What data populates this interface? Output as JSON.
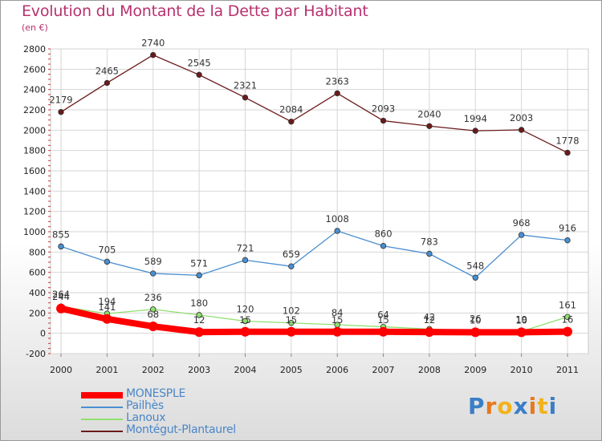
{
  "chart_data": {
    "type": "line",
    "title": "Evolution du Montant de la Dette par Habitant",
    "subtitle": "(en €)",
    "x": [
      "2000",
      "2001",
      "2002",
      "2003",
      "2004",
      "2005",
      "2006",
      "2007",
      "2008",
      "2009",
      "2010",
      "2011"
    ],
    "ylim": [
      -200,
      2800
    ],
    "yticks": [
      "-200",
      "0",
      "200",
      "400",
      "600",
      "800",
      "1000",
      "1200",
      "1400",
      "1600",
      "1800",
      "2000",
      "2200",
      "2400",
      "2600",
      "2800"
    ],
    "grid": true,
    "legend_position": "bottom-left",
    "series": [
      {
        "name": "MONESPLE",
        "color": "#ff0000",
        "values": [
          244,
          141,
          68,
          12,
          15,
          15,
          15,
          15,
          12,
          10,
          10,
          16
        ],
        "labels": [
          "244",
          "141",
          "68",
          "12",
          "15",
          "15",
          "15",
          "15",
          "12",
          "10",
          "10",
          "16"
        ]
      },
      {
        "name": "Pailhès",
        "color": "#4a8fd0",
        "values": [
          855,
          705,
          589,
          571,
          721,
          659,
          1008,
          860,
          783,
          548,
          968,
          916
        ],
        "labels": [
          "855",
          "705",
          "589",
          "571",
          "721",
          "659",
          "1008",
          "860",
          "783",
          "548",
          "968",
          "916"
        ]
      },
      {
        "name": "Lanoux",
        "color": "#90e070",
        "values": [
          264,
          194,
          236,
          180,
          120,
          102,
          84,
          64,
          42,
          26,
          19,
          161
        ],
        "labels": [
          "264",
          "194",
          "236",
          "180",
          "120",
          "102",
          "84",
          "64",
          "42",
          "26",
          "19",
          "161"
        ]
      },
      {
        "name": "Montégut-Plantaurel",
        "color": "#6b1a1a",
        "values": [
          2179,
          2465,
          2740,
          2545,
          2321,
          2084,
          2363,
          2093,
          2040,
          1994,
          2003,
          1778
        ],
        "labels": [
          "2179",
          "2465",
          "2740",
          "2545",
          "2321",
          "2084",
          "2363",
          "2093",
          "2040",
          "1994",
          "2003",
          "1778"
        ]
      }
    ]
  },
  "logo": {
    "text": "Proxiti",
    "letter_colors": [
      "#3a7ec8",
      "#e8781e",
      "#f2b21a",
      "#3a7ec8",
      "#e8781e",
      "#f2b21a",
      "#3a7ec8"
    ]
  }
}
